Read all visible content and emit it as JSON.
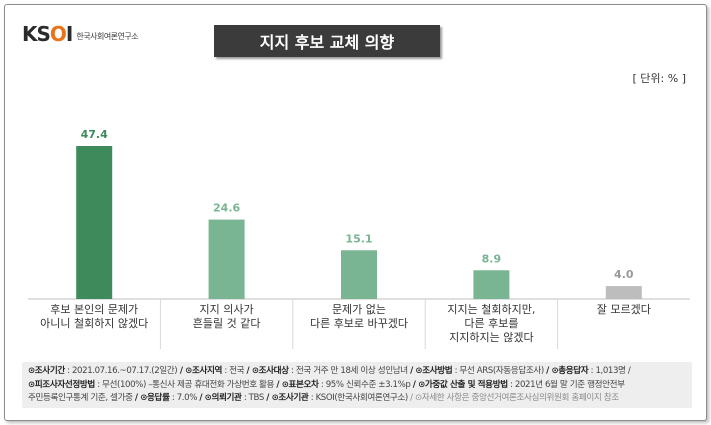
{
  "logo": {
    "mark_k": "K",
    "mark_so": "S",
    "mark_o": "O",
    "mark_i": "I",
    "subtitle": "한국사회여론연구소"
  },
  "title": "지지 후보 교체 의향",
  "unit": "[ 단위: % ]",
  "chart_data": {
    "type": "bar",
    "categories": [
      [
        "후보 본인의 문제가",
        "아니니 철회하지 않겠다"
      ],
      [
        "지지 의사가",
        "흔들릴 것 같다"
      ],
      [
        "문제가 없는",
        "다른 후보로 바꾸겠다"
      ],
      [
        "지지는 철회하지만,",
        "다른 후보를",
        "지지하지는 않겠다"
      ],
      [
        "잘 모르겠다"
      ]
    ],
    "values": [
      47.4,
      24.6,
      15.1,
      8.9,
      4.0
    ],
    "value_labels": [
      "47.4",
      "24.6",
      "15.1",
      "8.9",
      "4.0"
    ],
    "colors": [
      "#3f8a5b",
      "#79b592",
      "#79b592",
      "#79b592",
      "#bdbdbd"
    ],
    "label_colors": [
      "#3f8a5b",
      "#79b592",
      "#79b592",
      "#79b592",
      "#999999"
    ],
    "ylim": [
      0,
      50
    ],
    "grid": false
  },
  "footer": {
    "line1": [
      {
        "k": "⊙조사기간",
        "v": " : 2021.07.16.~07.17.(2일간)"
      },
      {
        "k": " / ⊙조사지역",
        "v": " : 전국 "
      },
      {
        "k": "/ ⊙조사대상",
        "v": " : 전국 거주 만 18세 이상 성인남녀 "
      },
      {
        "k": "/ ⊙조사방법",
        "v": " : 무선 ARS(자동응답조사) "
      },
      {
        "k": "/ ⊙총응답자",
        "v": " : 1,013명 /"
      }
    ],
    "line2": [
      {
        "k": "⊙피조사자선정방법",
        "v": " : 무선(100%) –통신사 제공 휴대전화 가상번호 활용 "
      },
      {
        "k": "/ ⊙표본오차",
        "v": " : 95% 신뢰수준 ±3.1%p "
      },
      {
        "k": "/ ⊙가중값 산출 및 적용방법",
        "v": " : 2021년 6월 말 기준 행정안전부"
      }
    ],
    "line3_plain": "주민등록인구통계 기준, 셀가중 ",
    "line3": [
      {
        "k": "/ ⊙응답률",
        "v": " : 7.0% "
      },
      {
        "k": "/ ⊙의뢰기관",
        "v": " : TBS "
      },
      {
        "k": "/ ⊙조사기관",
        "v": " : KSOI(한국사회여론연구소) "
      }
    ],
    "line3_muted": "/ ⊙자세한 사항은 중앙선거여론조사심의위원회 홈페이지 참조"
  }
}
